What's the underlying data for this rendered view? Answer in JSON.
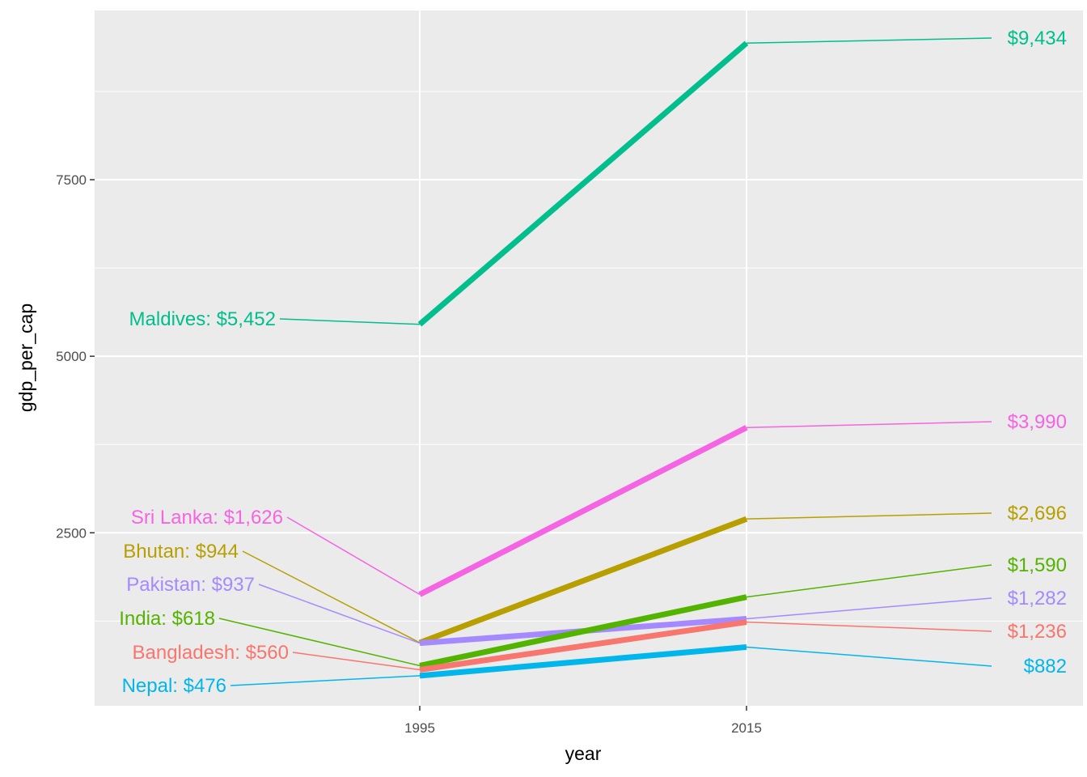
{
  "chart_data": {
    "type": "line",
    "xlabel": "year",
    "ylabel": "gdp_per_cap",
    "x": [
      1995,
      2015
    ],
    "x_tick_labels": [
      "1995",
      "2015"
    ],
    "y_ticks": [
      2500,
      5000,
      7500
    ],
    "y_tick_labels": [
      "2500",
      "5000",
      "7500"
    ],
    "ylim": [
      200,
      10100
    ],
    "grid": true,
    "legend": "none",
    "series": [
      {
        "name": "Maldives",
        "color": "#00BF8C",
        "values": [
          5452,
          9434
        ],
        "start_label": "Maldives: $5,452",
        "end_label": "$9,434"
      },
      {
        "name": "Sri Lanka",
        "color": "#F564E3",
        "values": [
          1626,
          3990
        ],
        "start_label": "Sri Lanka: $1,626",
        "end_label": "$3,990"
      },
      {
        "name": "Bhutan",
        "color": "#B79F00",
        "values": [
          944,
          2696
        ],
        "start_label": "Bhutan: $944",
        "end_label": "$2,696"
      },
      {
        "name": "Pakistan",
        "color": "#A58AFF",
        "values": [
          937,
          1282
        ],
        "start_label": "Pakistan: $937",
        "end_label": "$1,282"
      },
      {
        "name": "India",
        "color": "#53B400",
        "values": [
          618,
          1590
        ],
        "start_label": "India: $618",
        "end_label": "$1,590"
      },
      {
        "name": "Bangladesh",
        "color": "#F8766D",
        "values": [
          560,
          1236
        ],
        "start_label": "Bangladesh: $560",
        "end_label": "$1,236"
      },
      {
        "name": "Nepal",
        "color": "#00B6EB",
        "values": [
          476,
          882
        ],
        "start_label": "Nepal: $476",
        "end_label": "$882"
      }
    ]
  }
}
